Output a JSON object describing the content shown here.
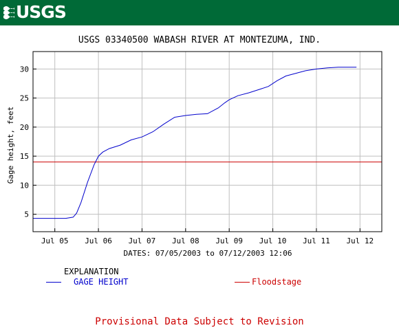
{
  "logo": {
    "text": "USGS"
  },
  "colors": {
    "banner": "#006a37",
    "series": "#0000cc",
    "floodstage": "#cc0000",
    "grid": "#bfbfbf"
  },
  "explanation": {
    "title": "EXPLANATION",
    "gage_label": "GAGE HEIGHT",
    "flood_label": "Floodstage"
  },
  "footer": {
    "text": "Provisional Data Subject to Revision"
  },
  "chart_data": {
    "type": "line",
    "title": "USGS 03340500 WABASH RIVER AT MONTEZUMA, IND.",
    "xlabel": "DATES: 07/05/2003 to 07/12/2003 12:06",
    "ylabel": "Gage height, feet",
    "xlim": [
      -0.5,
      7.5
    ],
    "ylim": [
      2,
      33
    ],
    "x_unit": "days since Jul 05 2003",
    "yticks": [
      5,
      10,
      15,
      20,
      25,
      30
    ],
    "xticks": [
      {
        "value": 0,
        "label": "Jul 05"
      },
      {
        "value": 1,
        "label": "Jul 06"
      },
      {
        "value": 2,
        "label": "Jul 07"
      },
      {
        "value": 3,
        "label": "Jul 08"
      },
      {
        "value": 4,
        "label": "Jul 09"
      },
      {
        "value": 5,
        "label": "Jul 10"
      },
      {
        "value": 6,
        "label": "Jul 11"
      },
      {
        "value": 7,
        "label": "Jul 12"
      }
    ],
    "grid": true,
    "series": [
      {
        "name": "GAGE HEIGHT",
        "x": [
          -0.5,
          0.25,
          0.42,
          0.5,
          0.6,
          0.75,
          0.9,
          1.0,
          1.1,
          1.25,
          1.5,
          1.75,
          2.0,
          2.25,
          2.5,
          2.75,
          3.0,
          3.25,
          3.5,
          3.75,
          3.9,
          4.0,
          4.2,
          4.45,
          4.7,
          4.9,
          5.1,
          5.3,
          5.5,
          5.75,
          6.0,
          6.25,
          6.5,
          6.75,
          6.92
        ],
        "y": [
          4.3,
          4.3,
          4.5,
          5.2,
          7.0,
          10.5,
          13.5,
          15.0,
          15.7,
          16.3,
          16.9,
          17.8,
          18.3,
          19.2,
          20.5,
          21.7,
          22.0,
          22.2,
          22.3,
          23.3,
          24.2,
          24.7,
          25.4,
          25.9,
          26.5,
          27.0,
          28.0,
          28.8,
          29.2,
          29.7,
          30.0,
          30.2,
          30.3,
          30.3,
          30.3
        ]
      }
    ],
    "reference_lines": [
      {
        "name": "Floodstage",
        "y": 14.0
      }
    ]
  }
}
